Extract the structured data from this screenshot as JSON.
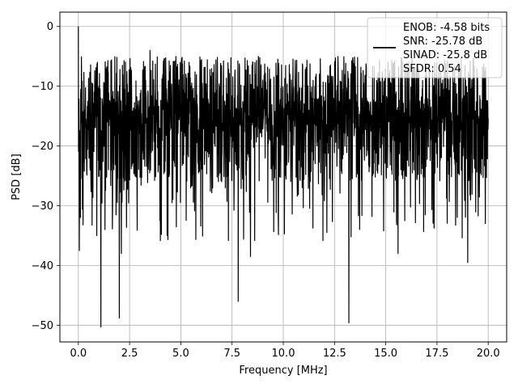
{
  "chart_data": {
    "type": "line",
    "title": "",
    "xlabel": "Frequency [MHz]",
    "ylabel": "PSD [dB]",
    "xlim": [
      -0.9,
      20.9
    ],
    "ylim": [
      -52.8,
      2.4
    ],
    "xticks": [
      0.0,
      2.5,
      5.0,
      7.5,
      10.0,
      12.5,
      15.0,
      17.5,
      20.0
    ],
    "xtick_labels": [
      "0.0",
      "2.5",
      "5.0",
      "7.5",
      "10.0",
      "12.5",
      "15.0",
      "17.5",
      "20.0"
    ],
    "yticks": [
      0,
      -10,
      -20,
      -30,
      -40,
      -50
    ],
    "ytick_labels": [
      "0",
      "−10",
      "−20",
      "−30",
      "−40",
      "−50"
    ],
    "grid": true,
    "legend_position": "top-right",
    "legend": {
      "lines": [
        "ENOB: -4.58 bits",
        "SNR: -25.78 dB",
        "SINAD: -25.8 dB",
        "SFDR: 0.54"
      ]
    },
    "series": [
      {
        "color": "#000000",
        "x_range": [
          0.0,
          20.0
        ],
        "envelope": {
          "upper": -5,
          "lower": -30,
          "typical_mean": -15
        },
        "notable_points": [
          {
            "x": 0.0,
            "y": 0.0
          },
          {
            "x": 0.05,
            "y": -37.5
          },
          {
            "x": 1.1,
            "y": -50.3
          },
          {
            "x": 2.0,
            "y": -48.8
          },
          {
            "x": 7.8,
            "y": -46.0
          },
          {
            "x": 13.2,
            "y": -49.6
          },
          {
            "x": 2.1,
            "y": -38.0
          },
          {
            "x": 8.4,
            "y": -38.5
          },
          {
            "x": 15.6,
            "y": -38.0
          },
          {
            "x": 19.0,
            "y": -39.5
          },
          {
            "x": 0.9,
            "y": -35.0
          },
          {
            "x": 1.3,
            "y": -34.0
          },
          {
            "x": 3.5,
            "y": -4.0
          }
        ]
      }
    ]
  }
}
